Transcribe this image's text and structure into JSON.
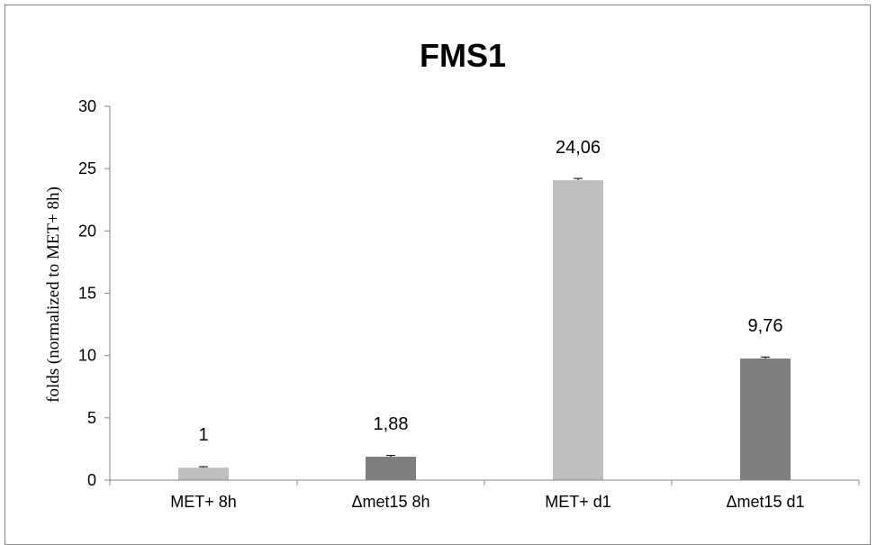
{
  "chart_data": {
    "type": "bar",
    "title": "FMS1",
    "xlabel": "",
    "ylabel": "folds (normalized to MET+ 8h)",
    "ylim": [
      0,
      30
    ],
    "yticks": [
      "0",
      "5",
      "10",
      "15",
      "20",
      "25",
      "30"
    ],
    "categories": [
      "MET+ 8h",
      "Δmet15 8h",
      "MET+ d1",
      "Δmet15 d1"
    ],
    "values": [
      1,
      1.88,
      24.06,
      9.76
    ],
    "data_labels": [
      "1",
      "1,88",
      "24,06",
      "9,76"
    ],
    "errors": [
      0.08,
      0.1,
      0.15,
      0.12
    ],
    "colors": [
      "#bfbfbf",
      "#7f7f7f",
      "#bfbfbf",
      "#7f7f7f"
    ],
    "grid": false,
    "legend": "none"
  }
}
